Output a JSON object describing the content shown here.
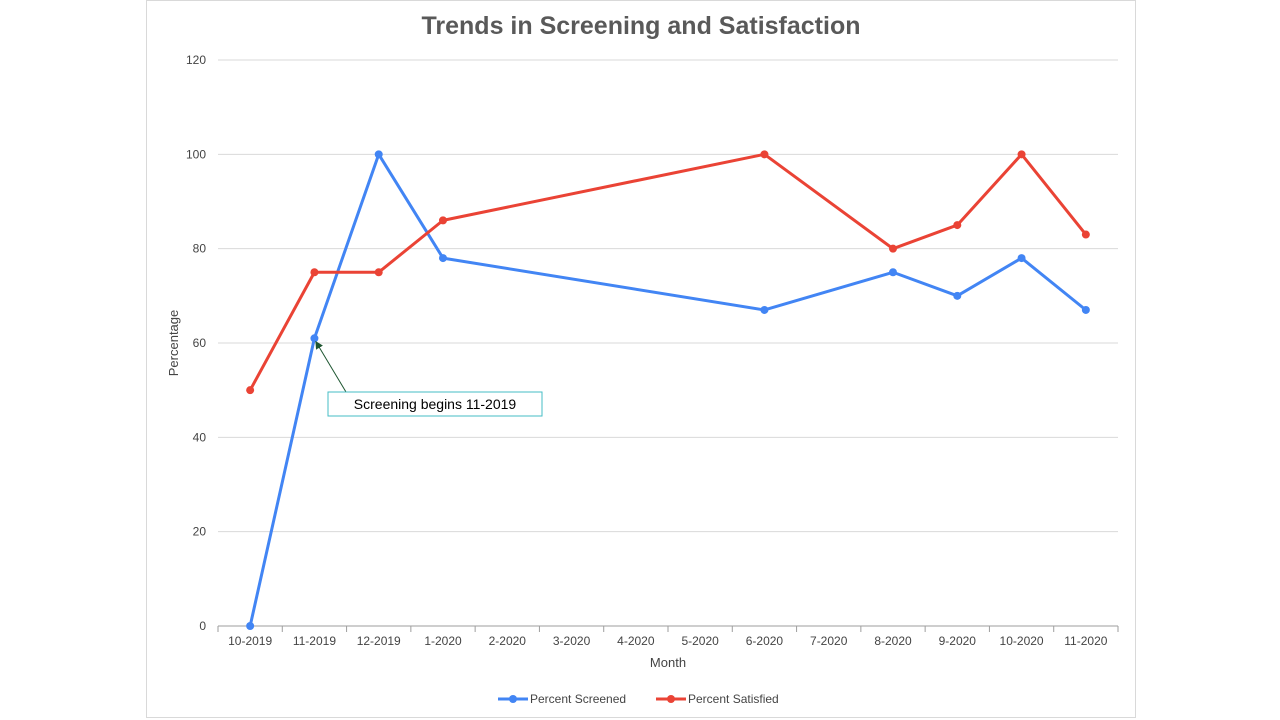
{
  "chart_data": {
    "type": "line",
    "title": "Trends in Screening and Satisfaction",
    "xlabel": "Month",
    "ylabel": "Percentage",
    "ylim": [
      0,
      120
    ],
    "yticks": [
      0,
      20,
      40,
      60,
      80,
      100,
      120
    ],
    "grid": true,
    "legend_position": "bottom",
    "categories": [
      "10-2019",
      "11-2019",
      "12-2019",
      "1-2020",
      "2-2020",
      "3-2020",
      "4-2020",
      "5-2020",
      "6-2020",
      "7-2020",
      "8-2020",
      "9-2020",
      "10-2020",
      "11-2020"
    ],
    "series": [
      {
        "name": "Percent Screened",
        "color": "#4285f4",
        "values": [
          0,
          61,
          100,
          78,
          null,
          null,
          null,
          null,
          67,
          null,
          75,
          70,
          78,
          67
        ]
      },
      {
        "name": "Percent Satisfied",
        "color": "#ea4335",
        "values": [
          50,
          75,
          75,
          86,
          null,
          null,
          null,
          null,
          100,
          null,
          80,
          85,
          100,
          83
        ]
      }
    ],
    "annotations": [
      {
        "text": "Screening begins 11-2019",
        "target_category": "11-2019",
        "target_value": 61,
        "box_color": "#46bdc6",
        "arrow_color": "#1e5631"
      }
    ]
  }
}
